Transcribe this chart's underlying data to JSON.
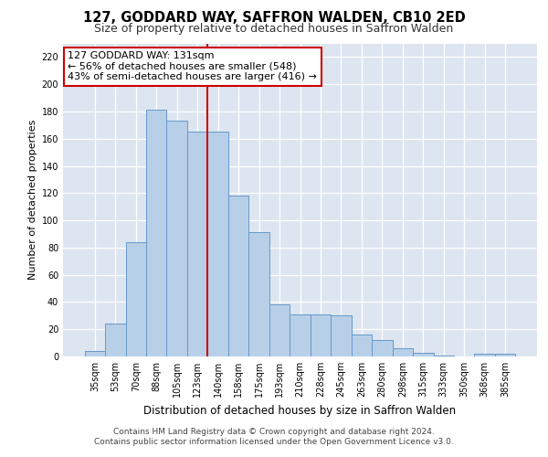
{
  "title": "127, GODDARD WAY, SAFFRON WALDEN, CB10 2ED",
  "subtitle": "Size of property relative to detached houses in Saffron Walden",
  "xlabel": "Distribution of detached houses by size in Saffron Walden",
  "ylabel": "Number of detached properties",
  "categories": [
    "35sqm",
    "53sqm",
    "70sqm",
    "88sqm",
    "105sqm",
    "123sqm",
    "140sqm",
    "158sqm",
    "175sqm",
    "193sqm",
    "210sqm",
    "228sqm",
    "245sqm",
    "263sqm",
    "280sqm",
    "298sqm",
    "315sqm",
    "333sqm",
    "350sqm",
    "368sqm",
    "385sqm"
  ],
  "values": [
    4,
    24,
    84,
    181,
    173,
    165,
    165,
    118,
    91,
    38,
    31,
    31,
    30,
    16,
    12,
    6,
    3,
    1,
    0,
    2,
    2
  ],
  "bar_color": "#b8cfe8",
  "bar_edge_color": "#6699cc",
  "vline_x_index": 5.5,
  "vline_color": "#cc0000",
  "annotation_line1": "127 GODDARD WAY: 131sqm",
  "annotation_line2": "← 56% of detached houses are smaller (548)",
  "annotation_line3": "43% of semi-detached houses are larger (416) →",
  "annotation_box_color": "#ffffff",
  "annotation_box_edge": "#cc0000",
  "ylim": [
    0,
    230
  ],
  "yticks": [
    0,
    20,
    40,
    60,
    80,
    100,
    120,
    140,
    160,
    180,
    200,
    220
  ],
  "background_color": "#dde5f0",
  "plot_bg_color": "#dde5f0",
  "footer_line1": "Contains HM Land Registry data © Crown copyright and database right 2024.",
  "footer_line2": "Contains public sector information licensed under the Open Government Licence v3.0.",
  "title_fontsize": 10.5,
  "subtitle_fontsize": 9,
  "xlabel_fontsize": 8.5,
  "ylabel_fontsize": 8,
  "tick_fontsize": 7,
  "annot_fontsize": 8,
  "footer_fontsize": 6.5
}
